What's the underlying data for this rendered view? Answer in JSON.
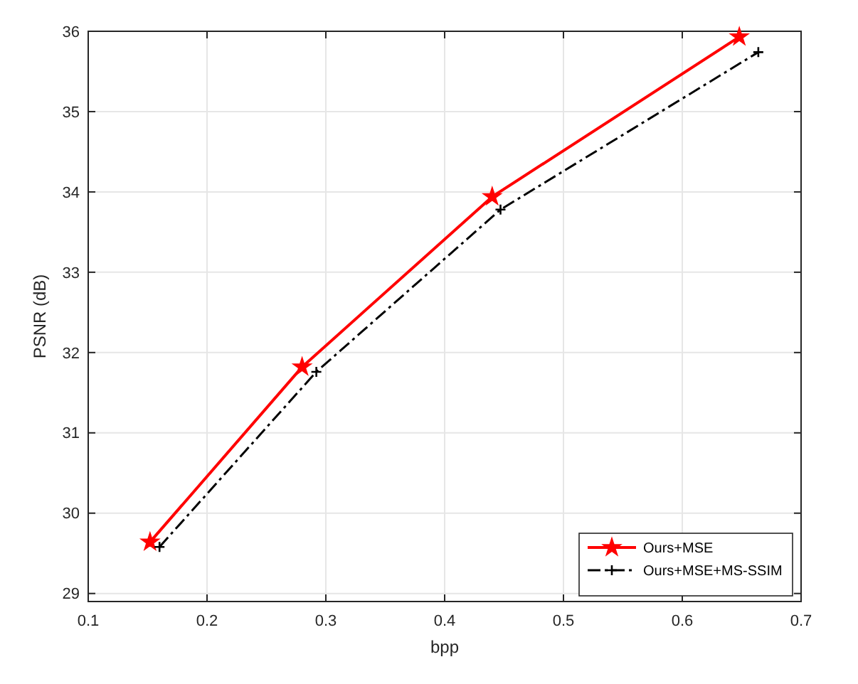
{
  "chart_data": {
    "type": "line",
    "xlabel": "bpp",
    "ylabel": "PSNR (dB)",
    "xlim": [
      0.1,
      0.7
    ],
    "xticks": [
      0.1,
      0.2,
      0.3,
      0.4,
      0.5,
      0.6,
      0.7
    ],
    "ylim": [
      28.9,
      36
    ],
    "yticks": [
      29,
      30,
      31,
      32,
      33,
      34,
      35,
      36
    ],
    "grid": true,
    "legend": "bottom right",
    "series": [
      {
        "name": "Ours+MSE",
        "color": "#ff0000",
        "marker": "star",
        "line_style": "solid",
        "x": [
          0.152,
          0.28,
          0.44,
          0.648
        ],
        "values": [
          29.64,
          31.82,
          33.94,
          35.93
        ]
      },
      {
        "name": "Ours+MSE+MS-SSIM",
        "color": "#000000",
        "marker": "cross",
        "line_style": "dashed",
        "x": [
          0.16,
          0.292,
          0.447,
          0.664
        ],
        "values": [
          29.58,
          31.76,
          33.78,
          35.74
        ]
      }
    ]
  }
}
